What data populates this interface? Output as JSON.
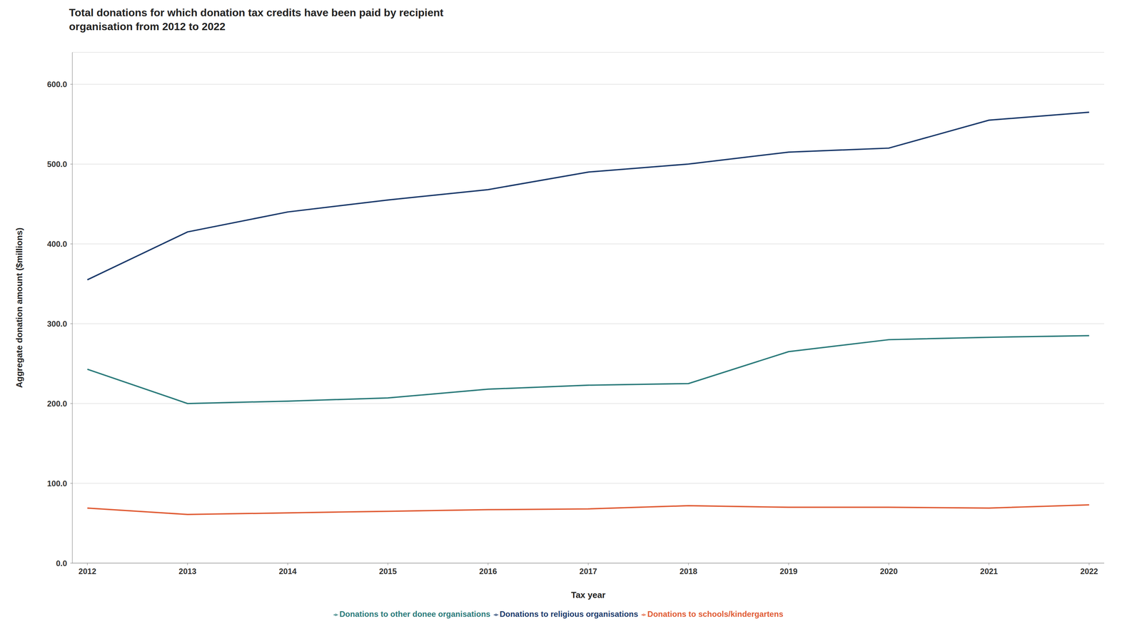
{
  "chart_data": {
    "type": "line",
    "title": "Total donations for which donation tax credits have been paid by recipient\norganisation from 2012 to 2022",
    "x_label": "Tax year",
    "y_label": "Aggregate donation amount ($millions)",
    "x": [
      2012,
      2013,
      2014,
      2015,
      2016,
      2017,
      2018,
      2019,
      2020,
      2021,
      2022
    ],
    "series": [
      {
        "name": "Donations to religious organisations",
        "color": "#1b3a6b",
        "values": [
          355,
          415,
          440,
          455,
          468,
          490,
          500,
          515,
          520,
          555,
          565
        ]
      },
      {
        "name": "Donations to other donee organisations",
        "color": "#2a7a7a",
        "values": [
          243,
          200,
          203,
          207,
          218,
          223,
          225,
          265,
          280,
          283,
          285
        ]
      },
      {
        "name": "Donations to schools/kindergartens",
        "color": "#e05c35",
        "values": [
          69,
          61,
          63,
          65,
          67,
          68,
          72,
          70,
          70,
          69,
          73
        ]
      }
    ],
    "xlim": [
      2011.85,
      2022.15
    ],
    "xticks": [
      2012,
      2013,
      2014,
      2015,
      2016,
      2017,
      2018,
      2019,
      2020,
      2021,
      2022
    ],
    "ylim": [
      0,
      640
    ],
    "yticks": [
      {
        "value": 0,
        "label": "0.0"
      },
      {
        "value": 100,
        "label": "100.0"
      },
      {
        "value": 200,
        "label": "200.0"
      },
      {
        "value": 300,
        "label": "300.0"
      },
      {
        "value": 400,
        "label": "400.0"
      },
      {
        "value": 500,
        "label": "500.0"
      },
      {
        "value": 600,
        "label": "600.0"
      }
    ],
    "grid": "y",
    "legend": "bottom"
  }
}
